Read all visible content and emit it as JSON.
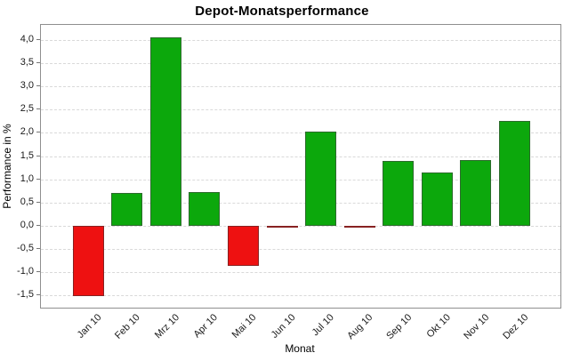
{
  "title": "Depot-Monatsperformance",
  "chart_data": {
    "type": "bar",
    "title": "Depot-Monatsperformance",
    "xlabel": "Monat",
    "ylabel": "Performance in %",
    "categories": [
      "Jan 10",
      "Feb 10",
      "Mrz 10",
      "Apr 10",
      "Mai 10",
      "Jun 10",
      "Jul 10",
      "Aug 10",
      "Sep 10",
      "Okt 10",
      "Nov 10",
      "Dez 10"
    ],
    "values": [
      -1.52,
      0.7,
      4.05,
      0.72,
      -0.87,
      -0.04,
      2.03,
      -0.04,
      1.4,
      1.15,
      1.41,
      2.25
    ],
    "yticks": [
      4.0,
      3.5,
      3.0,
      2.5,
      2.0,
      1.5,
      1.0,
      0.5,
      0.0,
      -0.5,
      -1.0,
      -1.5
    ],
    "ytick_labels": [
      "4,0",
      "3,5",
      "3,0",
      "2,5",
      "2,0",
      "1,5",
      "1,0",
      "0,5",
      "0,0",
      "-0,5",
      "-1,0",
      "-1,5"
    ],
    "ylim": [
      -1.76,
      4.32
    ],
    "grid": "horizontal-dashed",
    "legend": "none",
    "colors": {
      "positive_fill": "#0ca80c",
      "positive_border": "#2d6b2d",
      "negative_fill": "#ee1111",
      "negative_border": "#882222",
      "gridline": "#d9d9d9",
      "plot_border": "#8f8f8f"
    }
  }
}
